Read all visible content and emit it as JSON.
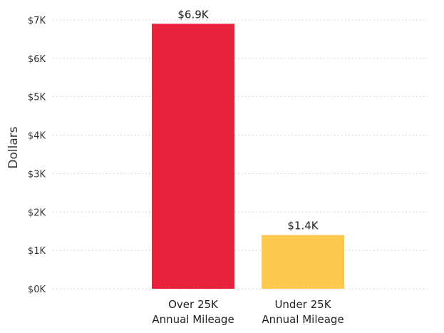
{
  "chart_data": {
    "type": "bar",
    "title": "",
    "xlabel": "",
    "ylabel": "Dollars",
    "ylim": [
      0,
      7000
    ],
    "grid": true,
    "categories": [
      "Over 25K\nAnnual Mileage",
      "Under 25K\nAnnual Mileage"
    ],
    "values": [
      6900,
      1400
    ],
    "data_labels": [
      "$6.9K",
      "$1.4K"
    ],
    "colors": [
      "#E8213D",
      "#FCC84D"
    ],
    "y_ticks": [
      {
        "value": 0,
        "label": "$0K"
      },
      {
        "value": 1000,
        "label": "$1K"
      },
      {
        "value": 2000,
        "label": "$2K"
      },
      {
        "value": 3000,
        "label": "$3K"
      },
      {
        "value": 4000,
        "label": "$4K"
      },
      {
        "value": 5000,
        "label": "$5K"
      },
      {
        "value": 6000,
        "label": "$6K"
      },
      {
        "value": 7000,
        "label": "$7K"
      }
    ]
  }
}
